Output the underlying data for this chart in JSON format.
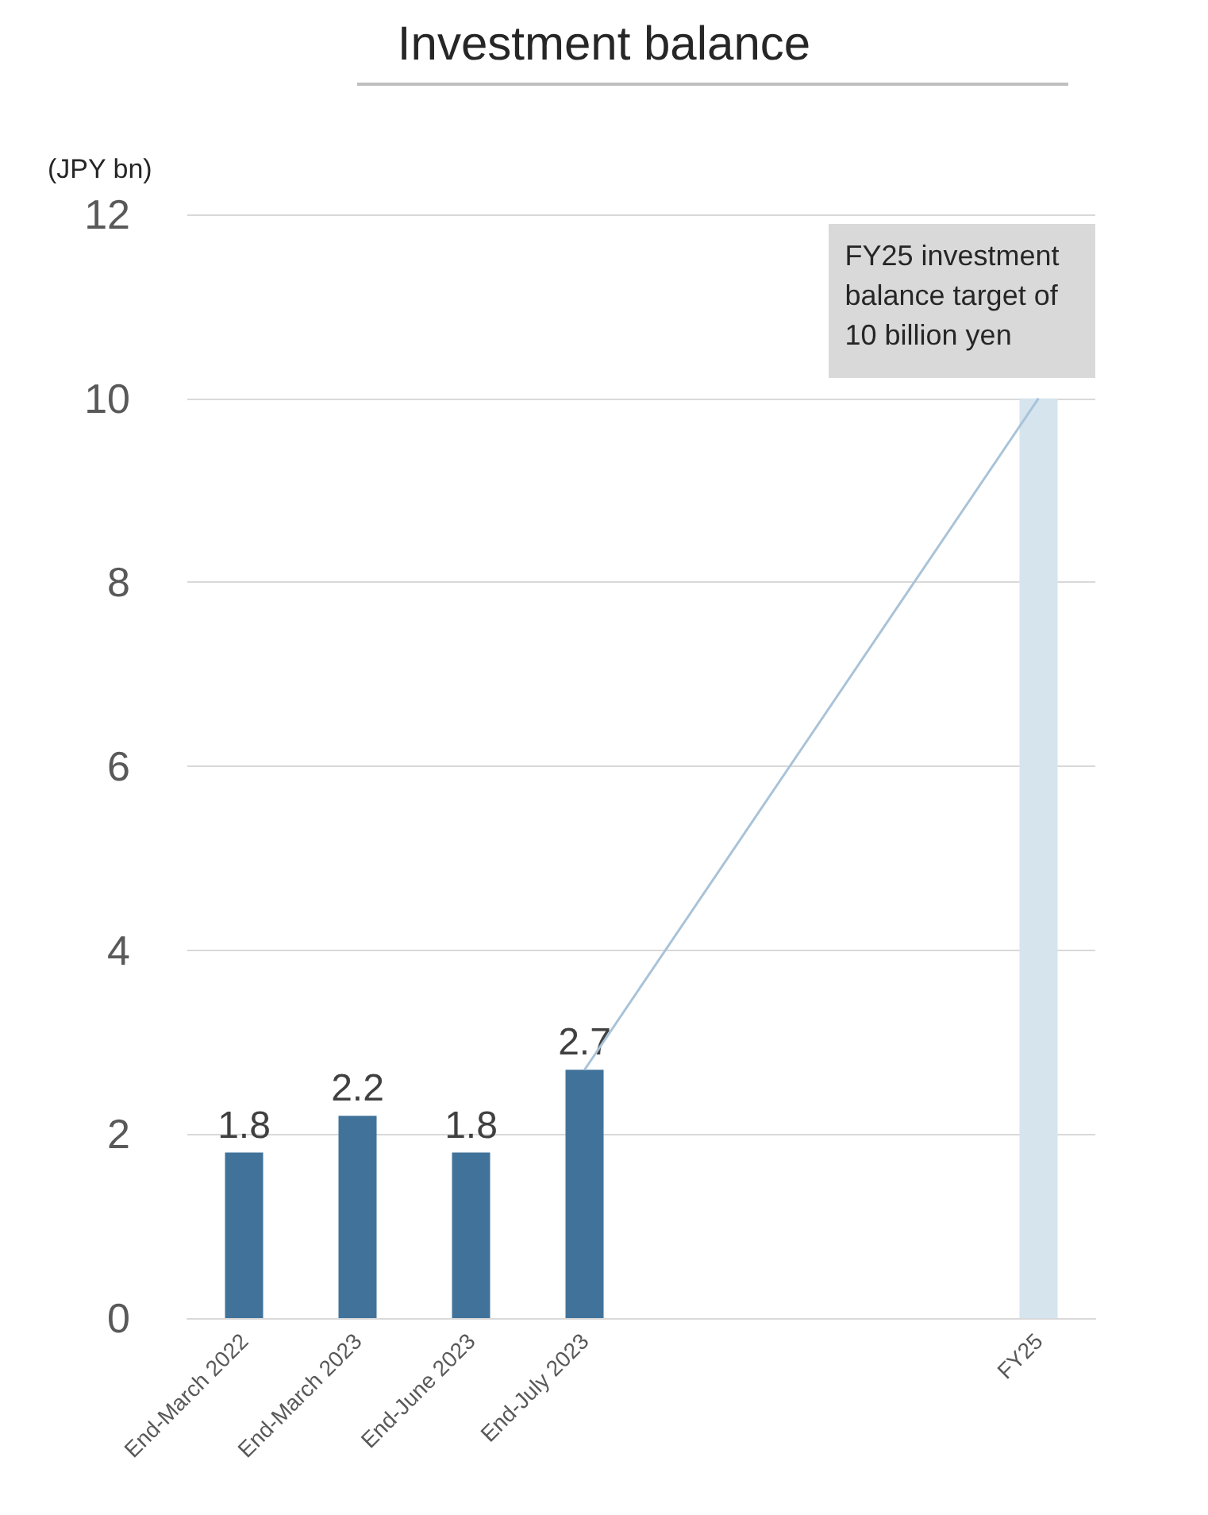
{
  "chart_data": {
    "type": "bar",
    "title": "Investment balance",
    "ylabel": "(JPY bn)",
    "categories": [
      "End-March 2022",
      "End-March 2023",
      "End-June 2023",
      "End-July 2023",
      null,
      null,
      null,
      "FY25"
    ],
    "series": [
      {
        "colors": [
          "#41739a",
          "#41739a",
          "#41739a",
          "#41739a",
          null,
          null,
          null,
          "#d6e4ee"
        ],
        "values": [
          1.8,
          2.2,
          1.8,
          2.7,
          null,
          null,
          null,
          10
        ],
        "value_labels": [
          "1.8",
          "2.2",
          "1.8",
          "2.7",
          null,
          null,
          null,
          null
        ]
      },
      {
        "type": "line",
        "color": "#a9c3d8",
        "values": [
          null,
          null,
          null,
          2.7,
          null,
          null,
          null,
          10
        ]
      }
    ],
    "ylim": [
      0,
      12
    ],
    "yticks": [
      0,
      2,
      4,
      6,
      8,
      10,
      12
    ],
    "grid": "y",
    "annotations": [
      {
        "text": "FY25 investment balance target of 10 billion yen",
        "x": "FY25",
        "y": 10
      }
    ]
  }
}
